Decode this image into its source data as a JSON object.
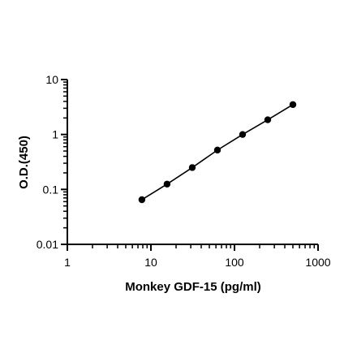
{
  "chart_data": {
    "type": "scatter",
    "title": "",
    "xlabel": "Monkey GDF-15 (pg/ml)",
    "ylabel": "O.D.(450)",
    "x_scale": "log",
    "y_scale": "log",
    "xlim": [
      1,
      1000
    ],
    "ylim": [
      0.01,
      10
    ],
    "x_ticks": [
      "1",
      "10",
      "100",
      "1000"
    ],
    "y_ticks": [
      "0.01",
      "0.1",
      "1",
      "10"
    ],
    "grid": false,
    "legend": "none",
    "fit_line": true,
    "series": [
      {
        "x": [
          7.8,
          15.6,
          31.25,
          62.5,
          125,
          250,
          500
        ],
        "y": [
          0.065,
          0.125,
          0.25,
          0.52,
          1.0,
          1.85,
          3.5
        ],
        "color": "#000000"
      }
    ]
  }
}
